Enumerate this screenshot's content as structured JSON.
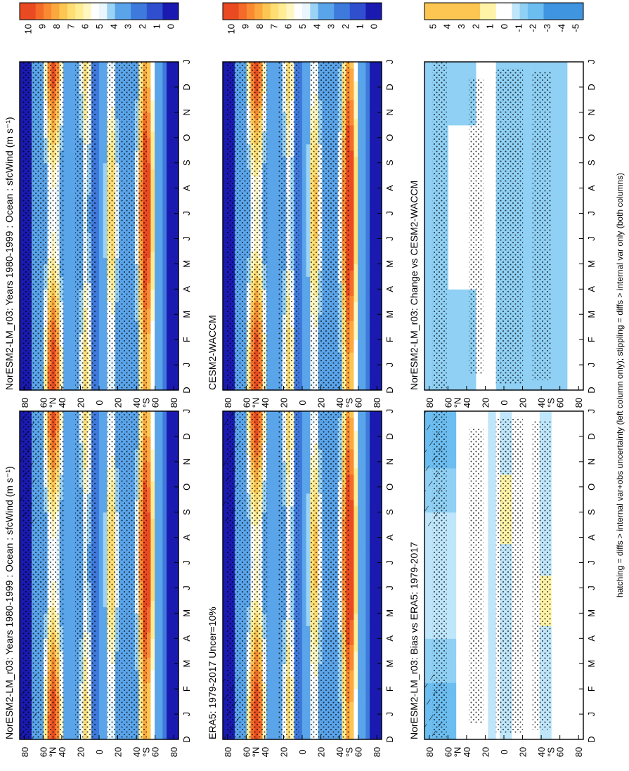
{
  "chart_data": [
    {
      "type": "heatmap",
      "name": "model-climatology",
      "title": "NorESM2-LM_r03: Years 1980-1999 : Ocean : sfcWind (m s⁻¹)",
      "x_ticks": [
        "D",
        "J",
        "F",
        "M",
        "A",
        "M",
        "J",
        "J",
        "A",
        "S",
        "O",
        "N",
        "D",
        "J"
      ],
      "y_ticks": [
        "80",
        "60",
        "40",
        "20",
        "0",
        "20",
        "40",
        "60",
        "80"
      ],
      "y_units": [
        "°N",
        "°S"
      ],
      "ylim": [
        -90,
        90
      ],
      "colorbar_labels": [
        "10",
        "9",
        "8",
        "7",
        "6",
        "5",
        "4",
        "3",
        "2",
        "1",
        "0"
      ],
      "colorbar_range": [
        0,
        10
      ],
      "hatching": true,
      "stippling": true
    },
    {
      "type": "heatmap",
      "name": "obs-climatology",
      "title": "ERA5: 1979-2017 Uncer=10%",
      "x_ticks": [
        "D",
        "J",
        "F",
        "M",
        "A",
        "M",
        "J",
        "J",
        "A",
        "S",
        "O",
        "N",
        "D",
        "J"
      ],
      "y_ticks": [
        "80",
        "60",
        "40",
        "20",
        "0",
        "20",
        "40",
        "60",
        "80"
      ],
      "y_units": [
        "°N",
        "°S"
      ],
      "ylim": [
        -90,
        90
      ],
      "colorbar_labels": [
        "10",
        "9",
        "8",
        "7",
        "6",
        "5",
        "4",
        "3",
        "2",
        "1",
        "0"
      ],
      "colorbar_range": [
        0,
        10
      ],
      "hatching": true,
      "stippling": true
    },
    {
      "type": "heatmap",
      "name": "bias",
      "title": "NorESM2-LM_r03: Bias vs ERA5: 1979-2017",
      "x_ticks": [
        "D",
        "J",
        "F",
        "M",
        "A",
        "M",
        "J",
        "J",
        "A",
        "S",
        "O",
        "N",
        "D",
        "J"
      ],
      "y_ticks": [
        "80",
        "60",
        "40",
        "20",
        "0",
        "20",
        "40",
        "60",
        "80"
      ],
      "y_units": [
        "°N",
        "°S"
      ],
      "ylim": [
        -90,
        90
      ],
      "colorbar_labels": [
        "5",
        "4",
        "3",
        "2",
        "1",
        "0",
        "-1",
        "-2",
        "-3",
        "-4",
        "-5"
      ],
      "colorbar_range": [
        -5,
        5
      ],
      "hatching": true,
      "stippling": true
    },
    {
      "type": "heatmap",
      "name": "model-climatology-right",
      "title": "NorESM2-LM_r03: Years 1980-1999 : Ocean : sfcWind (m s⁻¹)",
      "x_ticks": [
        "D",
        "J",
        "F",
        "M",
        "A",
        "M",
        "J",
        "J",
        "A",
        "S",
        "O",
        "N",
        "D",
        "J"
      ],
      "y_ticks": [
        "80",
        "60",
        "40",
        "20",
        "0",
        "20",
        "40",
        "60",
        "80"
      ],
      "y_units": [
        "°N",
        "°S"
      ],
      "ylim": [
        -90,
        90
      ],
      "colorbar_labels": [
        "10",
        "9",
        "8",
        "7",
        "6",
        "5",
        "4",
        "3",
        "2",
        "1",
        "0"
      ],
      "colorbar_range": [
        0,
        10
      ],
      "hatching": false,
      "stippling": true
    },
    {
      "type": "heatmap",
      "name": "reference-model",
      "title": "CESM2-WACCM",
      "x_ticks": [
        "D",
        "J",
        "F",
        "M",
        "A",
        "M",
        "J",
        "J",
        "A",
        "S",
        "O",
        "N",
        "D",
        "J"
      ],
      "y_ticks": [
        "80",
        "60",
        "40",
        "20",
        "0",
        "20",
        "40",
        "60",
        "80"
      ],
      "y_units": [
        "°N",
        "°S"
      ],
      "ylim": [
        -90,
        90
      ],
      "colorbar_labels": [
        "10",
        "9",
        "8",
        "7",
        "6",
        "5",
        "4",
        "3",
        "2",
        "1",
        "0"
      ],
      "colorbar_range": [
        0,
        10
      ],
      "hatching": false,
      "stippling": true
    },
    {
      "type": "heatmap",
      "name": "change",
      "title": "NorESM2-LM_r03: Change vs CESM2-WACCM",
      "x_ticks": [
        "D",
        "J",
        "F",
        "M",
        "A",
        "M",
        "J",
        "J",
        "A",
        "S",
        "O",
        "N",
        "D",
        "J"
      ],
      "y_ticks": [
        "80",
        "60",
        "40",
        "20",
        "0",
        "20",
        "40",
        "60",
        "80"
      ],
      "y_units": [
        "°N",
        "°S"
      ],
      "ylim": [
        -90,
        90
      ],
      "colorbar_labels": [
        "5",
        "4",
        "3",
        "2",
        "1",
        "0",
        "-1",
        "-2",
        "-3",
        "-4",
        "-5"
      ],
      "colorbar_range": [
        -5,
        5
      ],
      "hatching": false,
      "stippling": true
    }
  ],
  "footnote": "hatching = diffs > internal var+obs uncertainty (left column only); stippling = diffs > internal var only (both columns)",
  "colors": {
    "wind_scale": [
      "#d7191c",
      "#e83420",
      "#f25a24",
      "#f77f2d",
      "#fba33c",
      "#fdc04f",
      "#fed96a",
      "#ffe98b",
      "#fff4b0",
      "#ffffff",
      "#ffffff",
      "#d7eefd",
      "#a9ddf8",
      "#7cc8f2",
      "#57a6e8",
      "#3f85dc",
      "#3162d0",
      "#2a41c4",
      "#2020b8",
      "#1010a0"
    ],
    "diff_scale": [
      "#d7191c",
      "#e83420",
      "#f25a24",
      "#f77f2d",
      "#fba33c",
      "#fdc04f",
      "#fed96a",
      "#ffe98b",
      "#fff4b0",
      "#ffffff",
      "#ffffff",
      "#d7eefd",
      "#a9ddf8",
      "#7cc8f2",
      "#57a6e8",
      "#3f85dc",
      "#3162d0",
      "#2a41c4",
      "#2020b8",
      "#1010a0"
    ]
  }
}
